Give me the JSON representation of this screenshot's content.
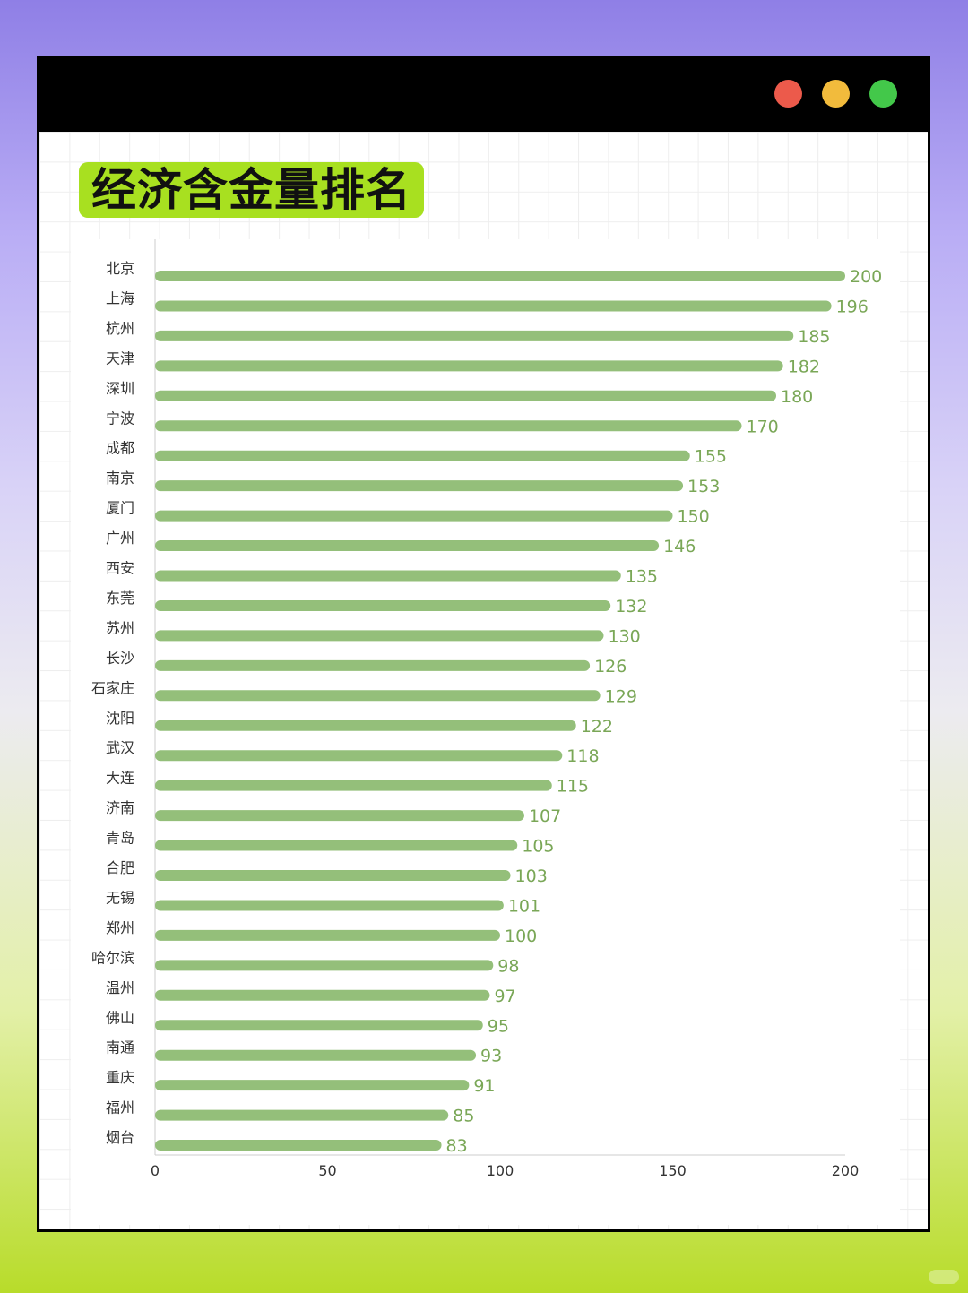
{
  "window": {
    "controls": [
      {
        "name": "close-dot",
        "color": "#ec5a4b"
      },
      {
        "name": "minimize-dot",
        "color": "#f2bb3c"
      },
      {
        "name": "maximize-dot",
        "color": "#43c84a"
      }
    ]
  },
  "title": "经济含金量排名",
  "colors": {
    "bar": "#94bf7a",
    "label": "#7aa757",
    "title_bg": "#a8e020"
  },
  "chart_data": {
    "type": "bar",
    "orientation": "horizontal",
    "categories": [
      "北京",
      "上海",
      "杭州",
      "天津",
      "深圳",
      "宁波",
      "成都",
      "南京",
      "厦门",
      "广州",
      "西安",
      "东莞",
      "苏州",
      "长沙",
      "石家庄",
      "沈阳",
      "武汉",
      "大连",
      "济南",
      "青岛",
      "合肥",
      "无锡",
      "郑州",
      "哈尔滨",
      "温州",
      "佛山",
      "南通",
      "重庆",
      "福州",
      "烟台"
    ],
    "values": [
      200,
      196,
      185,
      182,
      180,
      170,
      155,
      153,
      150,
      146,
      135,
      132,
      130,
      126,
      129,
      122,
      118,
      115,
      107,
      105,
      103,
      101,
      100,
      98,
      97,
      95,
      93,
      91,
      85,
      83
    ],
    "xlim": [
      0,
      200
    ],
    "xticks": [
      "0",
      "50",
      "100",
      "150",
      "200"
    ],
    "title": "",
    "xlabel": "",
    "ylabel": "",
    "data_labels": true
  }
}
